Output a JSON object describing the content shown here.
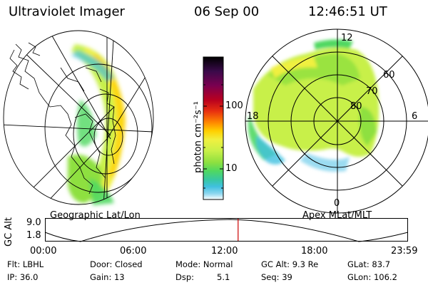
{
  "header": {
    "instrument": "Ultraviolet Imager",
    "date": "06 Sep 00",
    "time": "12:46:51 UT"
  },
  "colorbar": {
    "unit_label": "photon cm⁻²s⁻¹",
    "ticks": [
      "100",
      "10"
    ],
    "scale": "log",
    "colors": [
      "#000000",
      "#3a0a4a",
      "#7a0050",
      "#b80020",
      "#e83010",
      "#ff8800",
      "#ffd000",
      "#f0f040",
      "#c8f048",
      "#8ee040",
      "#50d860",
      "#38c8a0",
      "#40c0e0",
      "#90d8f0",
      "#ffffff"
    ]
  },
  "left_panel": {
    "label": "Geographic Lat/Lon"
  },
  "right_panel": {
    "label": "Apex  MLat/MLT",
    "lat_labels": [
      "60",
      "70",
      "80"
    ],
    "mlt_labels": [
      "12",
      "18",
      "6",
      "0"
    ]
  },
  "altitude_plot": {
    "ylabel": "GC Alt",
    "yticks": [
      "9.0",
      "1.8"
    ],
    "xticks": [
      "00:00",
      "06:00",
      "12:00",
      "18:00",
      "23:59"
    ],
    "current_time_fraction": 0.532,
    "marker_color": "#cc0000"
  },
  "status": {
    "flt": "Flt: LBHL",
    "ip": "IP: 36.0",
    "door": "Door: Closed",
    "gain": "Gain: 13",
    "mode": "Mode: Normal",
    "dsp_label": "Dsp:",
    "dsp_value": "5.1",
    "gc_alt": "GC Alt: 9.3 Re",
    "seq": "Seq: 39",
    "glat": "GLat:  83.7",
    "glon": "GLon: 106.2"
  }
}
